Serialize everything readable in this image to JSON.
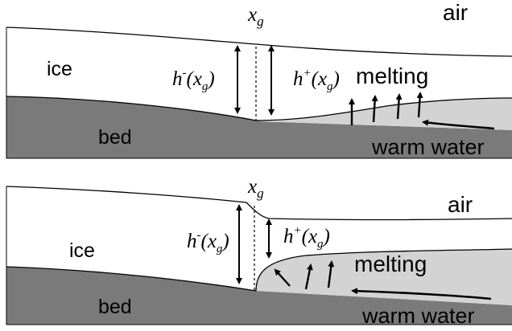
{
  "panels": [
    {
      "xg_label": "x",
      "xg_sub": "g",
      "air_label": "air",
      "ice_label": "ice",
      "bed_label": "bed",
      "h_minus": {
        "h": "h",
        "sup": "-",
        "open": "(x",
        "sub": "g",
        "close": ")"
      },
      "h_plus": {
        "h": "h",
        "sup": "+",
        "open": "(x",
        "sub": "g",
        "close": ")"
      },
      "melting_label": "melting",
      "warm_water_label": "warm water"
    },
    {
      "xg_label": "x",
      "xg_sub": "g",
      "air_label": "air",
      "ice_label": "ice",
      "bed_label": "bed",
      "h_minus": {
        "h": "h",
        "sup": "-",
        "open": "(x",
        "sub": "g",
        "close": ")"
      },
      "h_plus": {
        "h": "h",
        "sup": "+",
        "open": "(x",
        "sub": "g",
        "close": ")"
      },
      "melting_label": "melting",
      "warm_water_label": "warm water"
    }
  ],
  "colors": {
    "bed": "#7a7a7a",
    "water": "#d3d3d3",
    "ice": "#ffffff",
    "line": "#000000"
  }
}
